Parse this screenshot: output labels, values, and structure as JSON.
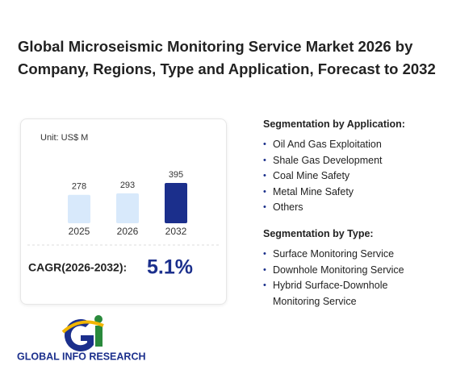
{
  "title": "Global Microseismic Monitoring Service Market 2026 by Company, Regions, Type and Application, Forecast to 2032",
  "chart_data": {
    "type": "bar",
    "unit": "Unit: US$ M",
    "categories": [
      "2025",
      "2026",
      "2032"
    ],
    "values": [
      278,
      293,
      395
    ],
    "colors": [
      "#d8e9fb",
      "#d8e9fb",
      "#1b2f8c"
    ],
    "cagr_label": "CAGR(2026-2032):",
    "cagr_value": "5.1%"
  },
  "segmentation_by_application": {
    "heading": "Segmentation by Application:",
    "items": [
      "Oil And Gas Exploitation",
      "Shale Gas Development",
      "Coal Mine Safety",
      "Metal Mine Safety",
      "Others"
    ]
  },
  "segmentation_by_type": {
    "heading": "Segmentation by Type:",
    "items": [
      "Surface Monitoring Service",
      "Downhole Monitoring Service",
      "Hybrid Surface-Downhole Monitoring Service"
    ]
  },
  "logo": "GLOBAL INFO RESEARCH"
}
